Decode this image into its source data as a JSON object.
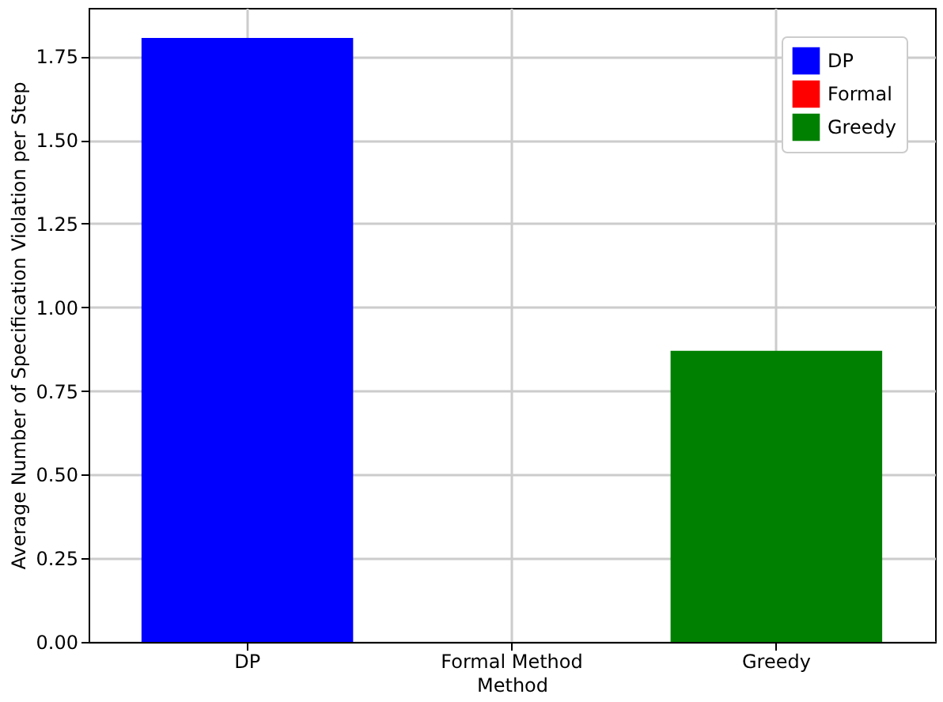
{
  "chart_data": {
    "type": "bar",
    "xlabel": "Method",
    "ylabel": "Average Number of Specification Violation per Step",
    "categories": [
      "DP",
      "Formal Method",
      "Greedy"
    ],
    "series": [
      {
        "name": "DP",
        "color": "#0000ff",
        "values": [
          1.805,
          null,
          null
        ]
      },
      {
        "name": "Formal",
        "color": "#ff0000",
        "values": [
          null,
          0,
          null
        ]
      },
      {
        "name": "Greedy",
        "color": "#008000",
        "values": [
          null,
          null,
          0.87
        ]
      }
    ],
    "ylim": [
      0,
      1.895
    ],
    "yticks": [
      {
        "value": 0,
        "label": "0.00"
      },
      {
        "value": 0.25,
        "label": "0.25"
      },
      {
        "value": 0.5,
        "label": "0.50"
      },
      {
        "value": 0.75,
        "label": "0.75"
      },
      {
        "value": 1,
        "label": "1.00"
      },
      {
        "value": 1.25,
        "label": "1.25"
      },
      {
        "value": 1.5,
        "label": "1.50"
      },
      {
        "value": 1.75,
        "label": "1.75"
      }
    ],
    "grid": true,
    "legend": "top right"
  }
}
